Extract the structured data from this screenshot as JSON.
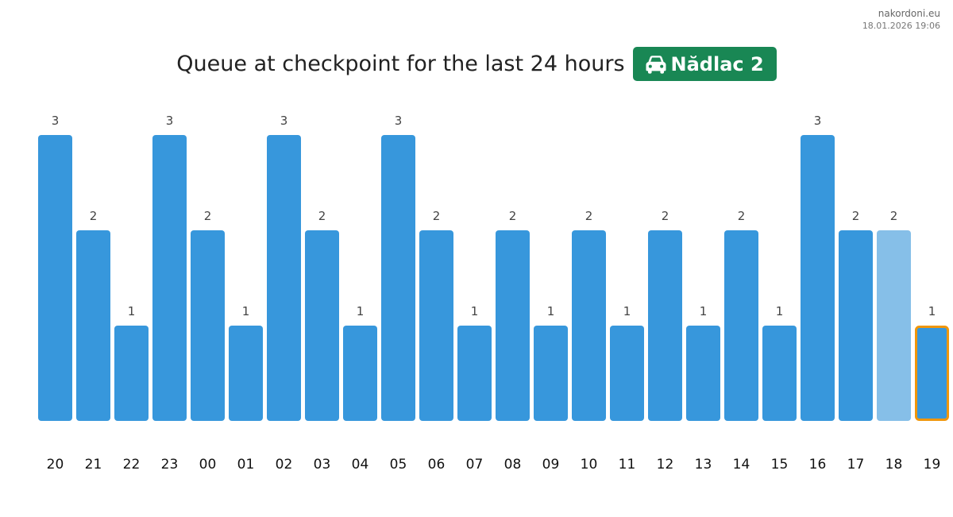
{
  "site": {
    "name": "nakordoni.eu",
    "timestamp": "18.01.2026 19:06"
  },
  "header": {
    "title": "Queue at checkpoint for the last 24 hours",
    "badge": {
      "icon": "car-icon",
      "label": "Nădlac 2",
      "color": "#198754"
    }
  },
  "colors": {
    "bar": "#3797dc",
    "bar_faded": "#86bfe8",
    "current_outline": "#f0960a"
  },
  "chart_data": {
    "type": "bar",
    "title": "Queue at checkpoint for the last 24 hours",
    "xlabel": "",
    "ylabel": "",
    "categories": [
      "20",
      "21",
      "22",
      "23",
      "00",
      "01",
      "02",
      "03",
      "04",
      "05",
      "06",
      "07",
      "08",
      "09",
      "10",
      "11",
      "12",
      "13",
      "14",
      "15",
      "16",
      "17",
      "18",
      "19"
    ],
    "values": [
      3,
      2,
      1,
      3,
      2,
      1,
      3,
      2,
      1,
      3,
      2,
      1,
      2,
      1,
      2,
      1,
      2,
      1,
      2,
      1,
      3,
      2,
      2,
      1
    ],
    "ylim": [
      0,
      3
    ],
    "grid": false,
    "data_labels": true,
    "faded_category": "18",
    "highlighted_category": "19"
  }
}
